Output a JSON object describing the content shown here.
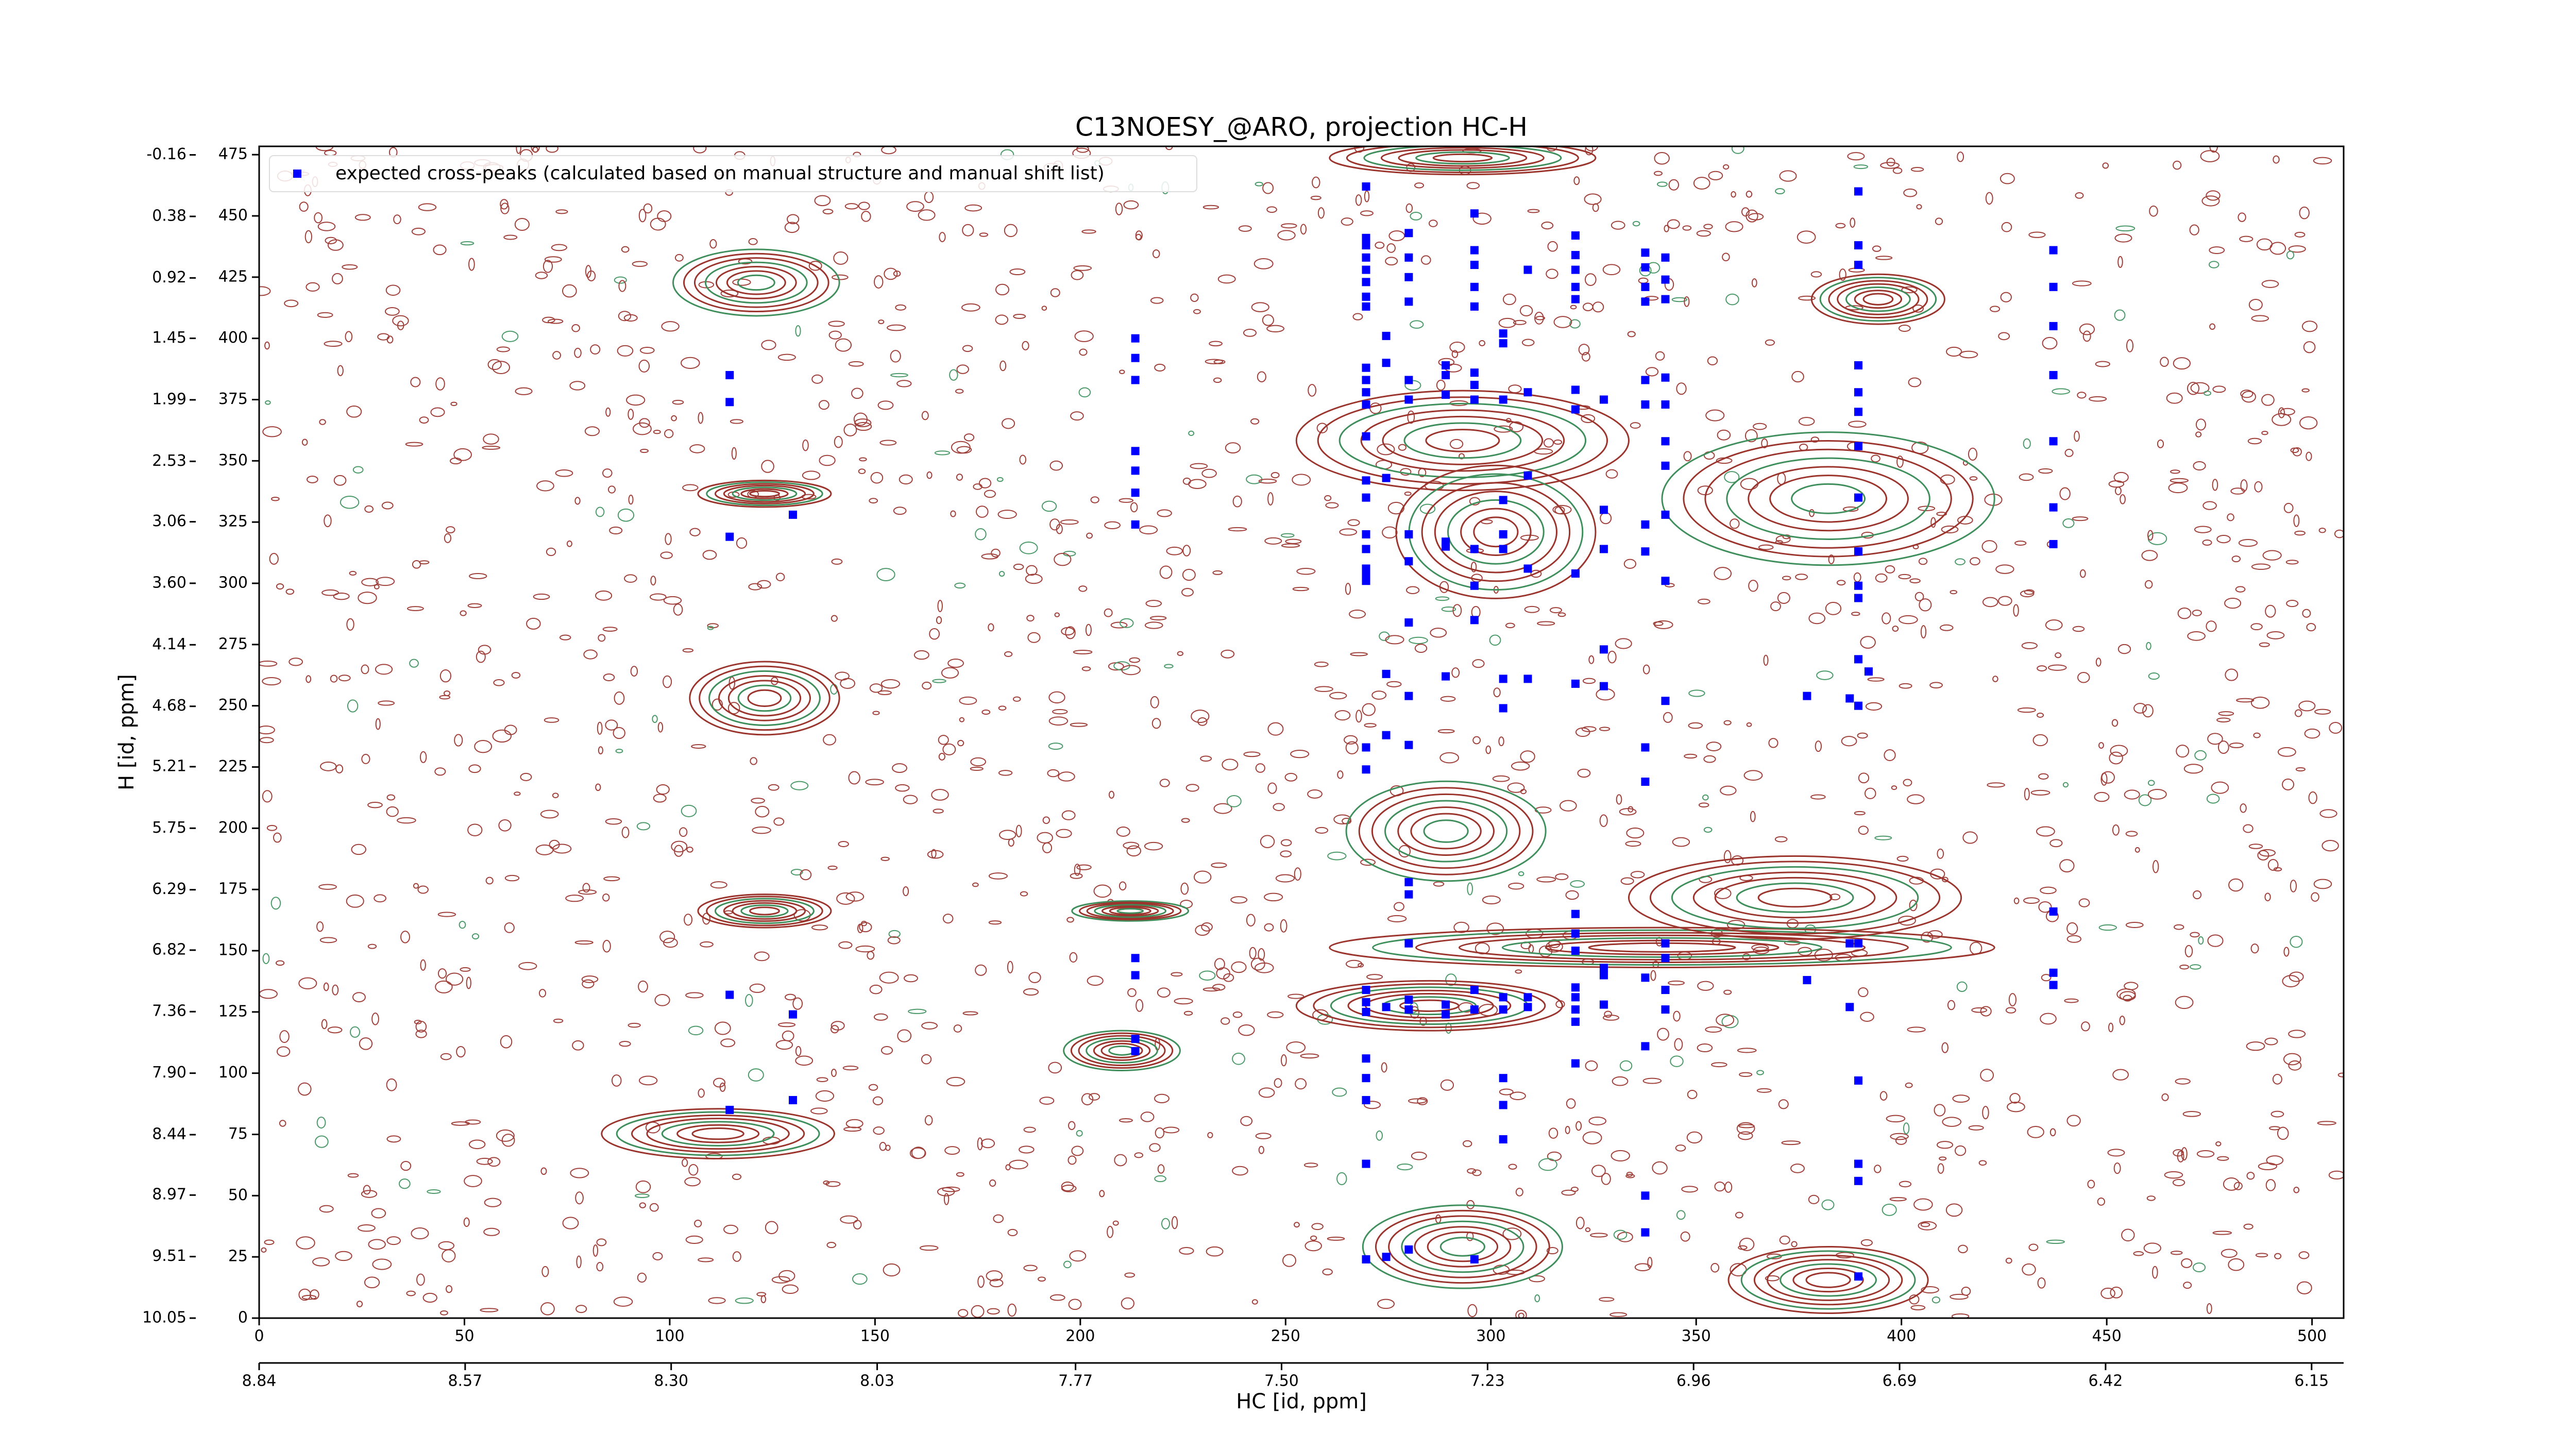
{
  "chart_data": {
    "type": "scatter",
    "title": "C13NOESY_@ARO, projection HC-H",
    "x_label": "HC [id, ppm]",
    "y_label": "H [id, ppm]",
    "xlim": [
      0,
      507.7
    ],
    "ylim": [
      0,
      478.4
    ],
    "xticks": [
      0,
      50,
      100,
      150,
      200,
      250,
      300,
      350,
      400,
      450,
      500
    ],
    "yticks": [
      0,
      25,
      50,
      75,
      100,
      125,
      150,
      175,
      200,
      225,
      250,
      275,
      300,
      325,
      350,
      375,
      400,
      425,
      450,
      475
    ],
    "x2lim": [
      8.84,
      6.108
    ],
    "x2ticks": [
      8.84,
      8.57,
      {
        "value": 8.3,
        "label": "8.30"
      },
      8.03,
      7.77,
      {
        "value": 7.5,
        "label": "7.50"
      },
      7.23,
      6.96,
      6.69,
      6.42,
      6.15
    ],
    "y2lim": [
      10.05,
      -0.235
    ],
    "y2ticks": [
      10.05,
      9.51,
      8.97,
      8.44,
      {
        "value": 7.9,
        "label": "7.90"
      },
      7.36,
      6.82,
      6.29,
      5.75,
      5.21,
      4.68,
      4.14,
      {
        "value": 3.6,
        "label": "3.60"
      },
      3.06,
      2.53,
      1.99,
      1.45,
      0.92,
      0.38,
      -0.16
    ],
    "legend": "upper left",
    "series": [
      {
        "name": "expected cross-peaks (calculated based on manual structure and manual shift list)",
        "color": "#0000ff",
        "x": [
          114.6,
          114.6,
          114.6,
          114.6,
          114.6,
          130,
          130,
          130,
          213.4,
          213.4,
          213.4,
          213.4,
          213.4,
          213.4,
          213.4,
          213.4,
          213.4,
          213.4,
          213.4,
          269.6,
          269.6,
          269.6,
          269.6,
          269.6,
          269.6,
          269.6,
          269.6,
          269.6,
          269.6,
          269.6,
          269.6,
          269.6,
          269.6,
          269.6,
          269.6,
          269.6,
          269.6,
          269.6,
          269.6,
          269.6,
          269.6,
          269.6,
          269.6,
          269.6,
          269.6,
          269.6,
          269.6,
          269.6,
          269.6,
          274.5,
          274.5,
          274.5,
          274.5,
          274.5,
          274.5,
          274.5,
          280,
          280,
          280,
          280,
          280,
          280,
          280,
          280,
          280,
          280,
          280,
          280,
          280,
          280,
          280,
          280,
          280,
          289,
          289,
          289,
          289,
          289,
          289,
          289,
          289,
          296,
          296,
          296,
          296,
          296,
          296,
          296,
          296,
          296,
          296,
          296,
          296,
          296,
          296,
          303,
          303,
          303,
          303,
          303,
          303,
          303,
          303,
          303,
          303,
          303,
          303,
          303,
          309,
          309,
          309,
          309,
          309,
          309,
          309,
          320.6,
          320.6,
          320.6,
          320.6,
          320.6,
          320.6,
          320.6,
          320.6,
          320.6,
          320.6,
          320.6,
          320.6,
          320.6,
          320.6,
          320.6,
          320.6,
          320.6,
          327.5,
          327.5,
          327.5,
          327.5,
          327.5,
          327.5,
          327.5,
          327.5,
          337.6,
          337.6,
          337.6,
          337.6,
          337.6,
          337.6,
          337.6,
          337.6,
          337.6,
          337.6,
          337.6,
          337.6,
          337.6,
          337.6,
          342.5,
          342.5,
          342.5,
          342.5,
          342.5,
          342.5,
          342.5,
          342.5,
          342.5,
          342.5,
          342.5,
          342.5,
          342.5,
          342.5,
          377,
          377,
          387.4,
          387.4,
          387.4,
          389.5,
          389.5,
          389.5,
          389.5,
          389.5,
          389.5,
          389.5,
          389.5,
          389.5,
          389.5,
          389.5,
          389.5,
          389.5,
          389.5,
          389.5,
          389.5,
          389.5,
          389.5,
          392,
          437,
          437,
          437,
          437,
          437,
          437,
          437,
          437,
          437,
          437
        ],
        "values": [
          385,
          374,
          319,
          132,
          85,
          328,
          124,
          89,
          400,
          392,
          383,
          354,
          346,
          337,
          324,
          147,
          140,
          114,
          109,
          462,
          441,
          438,
          433,
          428,
          423,
          417,
          413,
          388,
          383,
          378,
          373,
          360,
          342,
          335,
          320,
          314,
          306,
          303,
          301,
          233,
          224,
          134,
          129,
          125,
          106,
          98,
          89,
          63,
          24,
          401,
          390,
          343,
          263,
          238,
          127,
          25,
          443,
          433,
          425,
          415,
          383,
          375,
          320,
          309,
          284,
          254,
          234,
          178,
          173,
          153,
          130,
          126,
          28,
          389,
          385,
          377,
          317,
          315,
          262,
          128,
          124,
          451,
          436,
          430,
          421,
          413,
          386,
          381,
          375,
          314,
          299,
          285,
          134,
          126,
          24,
          402,
          398,
          375,
          334,
          320,
          314,
          261,
          249,
          131,
          126,
          98,
          87,
          73,
          428,
          378,
          344,
          306,
          261,
          131,
          127,
          442,
          434,
          428,
          421,
          416,
          379,
          371,
          304,
          259,
          165,
          157,
          150,
          135,
          131,
          126,
          121,
          104,
          375,
          330,
          314,
          273,
          258,
          143,
          140,
          128,
          435,
          429,
          421,
          415,
          383,
          373,
          324,
          313,
          233,
          219,
          139,
          111,
          50,
          35,
          433,
          424,
          416,
          384,
          373,
          358,
          348,
          328,
          301,
          252,
          153,
          147,
          134,
          126,
          254,
          138,
          253,
          153,
          127,
          460,
          438,
          430,
          389,
          378,
          370,
          356,
          335,
          313,
          299,
          294,
          269,
          250,
          153,
          97,
          63,
          56,
          17,
          264,
          436,
          421,
          405,
          385,
          358,
          331,
          316,
          166,
          141,
          136
        ]
      }
    ]
  }
}
